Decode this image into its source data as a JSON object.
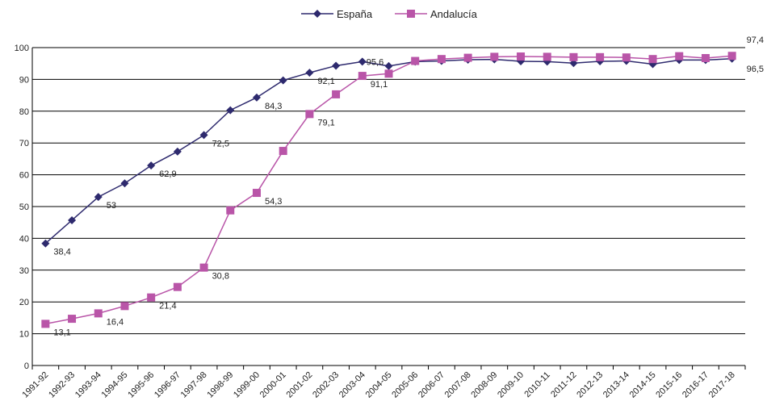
{
  "chart_data": {
    "type": "line",
    "title": "",
    "xlabel": "",
    "ylabel": "",
    "ylim": [
      0,
      100
    ],
    "yticks": [
      0,
      10,
      20,
      30,
      40,
      50,
      60,
      70,
      80,
      90,
      100
    ],
    "grid": "horizontal",
    "legend_position": "top-center",
    "categories": [
      "1991-92",
      "1992-93",
      "1993-94",
      "1994-95",
      "1995-96",
      "1996-97",
      "1997-98",
      "1998-99",
      "1999-00",
      "2000-01",
      "2001-02",
      "2002-03",
      "2003-04",
      "2004-05",
      "2005-06",
      "2006-07",
      "2007-08",
      "2008-09",
      "2009-10",
      "2010-11",
      "2011-12",
      "2012-13",
      "2013-14",
      "2014-15",
      "2015-16",
      "2016-17",
      "2017-18"
    ],
    "series": [
      {
        "name": "España",
        "color": "#2e2a6e",
        "marker": "diamond",
        "values": [
          38.4,
          45.7,
          53,
          57.3,
          62.9,
          67.3,
          72.5,
          80.3,
          84.3,
          89.7,
          92.1,
          94.3,
          95.6,
          94.2,
          95.6,
          95.8,
          96.2,
          96.3,
          95.7,
          95.6,
          95.1,
          95.7,
          95.8,
          94.8,
          96.1,
          96.1,
          96.5
        ],
        "labels": {
          "0": "38,4",
          "2": "53",
          "4": "62,9",
          "6": "72,5",
          "8": "84,3",
          "10": "92,1",
          "12": "95,6",
          "26": "96,5"
        }
      },
      {
        "name": "Andalucía",
        "color": "#b955a8",
        "marker": "square",
        "values": [
          13.1,
          14.7,
          16.4,
          18.7,
          21.4,
          24.7,
          30.8,
          48.8,
          54.3,
          67.5,
          79.1,
          85.3,
          91.1,
          91.8,
          95.8,
          96.4,
          96.8,
          97.1,
          97.2,
          97.1,
          97.0,
          97.0,
          96.9,
          96.4,
          97.3,
          96.7,
          97.4
        ],
        "labels": {
          "0": "13,1",
          "2": "16,4",
          "4": "21,4",
          "6": "30,8",
          "8": "54,3",
          "10": "79,1",
          "12": "91,1",
          "26": "97,4"
        }
      }
    ]
  }
}
